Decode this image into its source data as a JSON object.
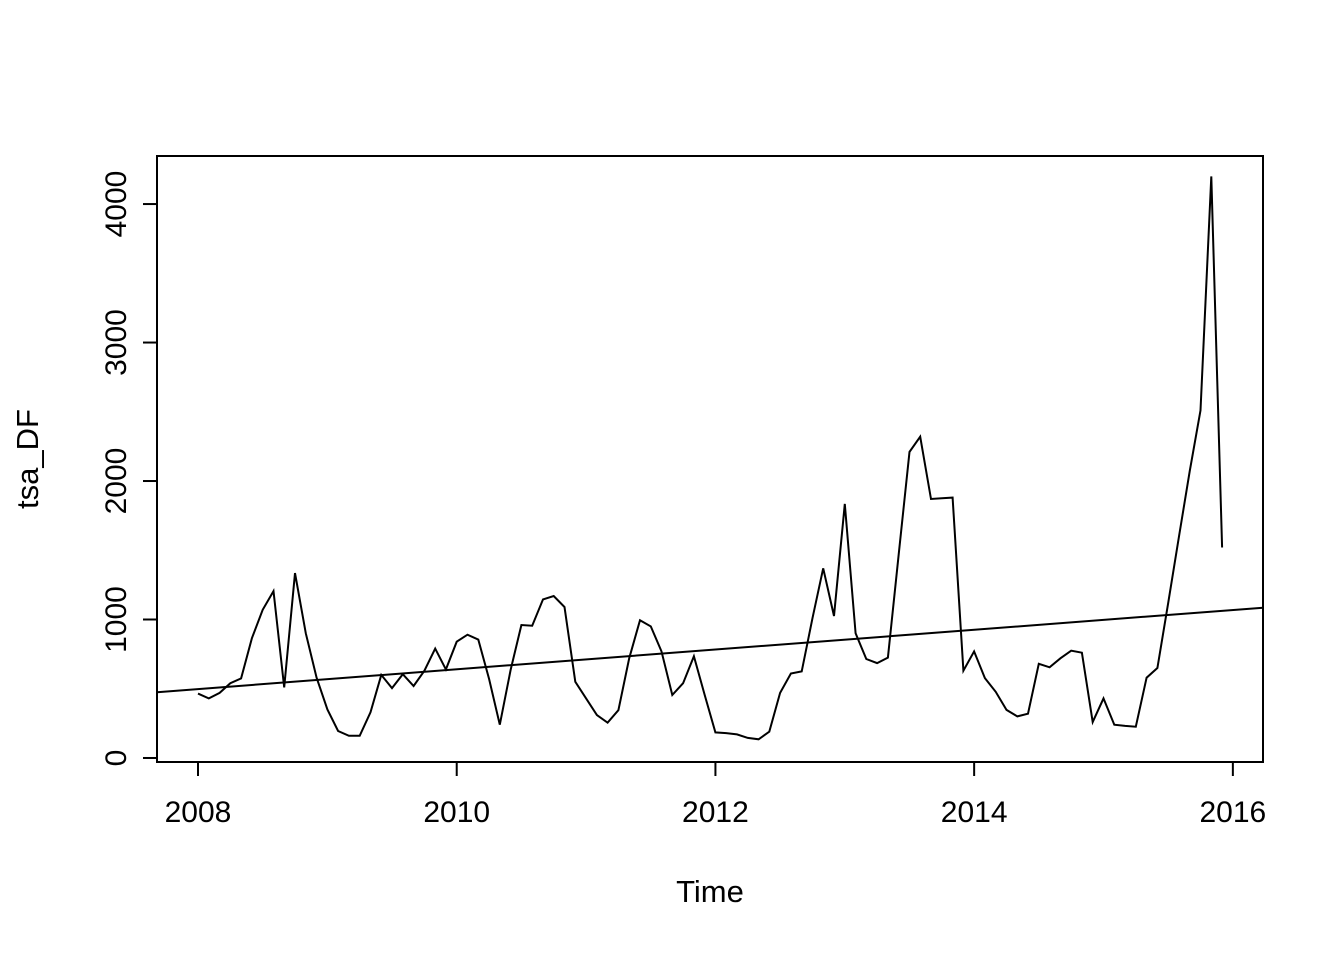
{
  "chart_data": {
    "type": "line",
    "title": "",
    "xlabel": "Time",
    "ylabel": "tsa_DF",
    "x_ticks": [
      2008,
      2010,
      2012,
      2014,
      2016
    ],
    "y_ticks": [
      0,
      1000,
      2000,
      3000,
      4000
    ],
    "xlim": [
      2007.683,
      2016.233
    ],
    "ylim": [
      -29,
      4347
    ],
    "grid": false,
    "legend": "none",
    "background": "#ffffff",
    "line_color": "#000000",
    "axis_color": "#000000",
    "series": [
      {
        "name": "tsa_DF",
        "kind": "monthly-time-series",
        "start": [
          2008,
          1
        ],
        "end": [
          2015,
          12
        ],
        "frequency": 12,
        "values": [
          465,
          430,
          470,
          540,
          575,
          865,
          1070,
          1205,
          510,
          1335,
          900,
          580,
          350,
          195,
          160,
          160,
          330,
          600,
          505,
          605,
          520,
          630,
          790,
          640,
          840,
          890,
          855,
          570,
          240,
          635,
          960,
          955,
          1145,
          1170,
          1090,
          550,
          430,
          310,
          255,
          345,
          720,
          995,
          950,
          770,
          455,
          540,
          735,
          455,
          185,
          180,
          170,
          145,
          135,
          190,
          470,
          610,
          625,
          1010,
          1370,
          1025,
          1835,
          900,
          715,
          685,
          725,
          1470,
          2210,
          2320,
          1870,
          1875,
          1880,
          630,
          770,
          577,
          478,
          347,
          300,
          320,
          680,
          655,
          720,
          775,
          760,
          260,
          430,
          240,
          232,
          226,
          580,
          650,
          1120,
          1600,
          2070,
          2510,
          4200,
          1520
        ]
      },
      {
        "name": "trend-line",
        "kind": "straight-line",
        "points": [
          [
            2007.683,
            475
          ],
          [
            2016.233,
            1085
          ]
        ]
      }
    ]
  }
}
